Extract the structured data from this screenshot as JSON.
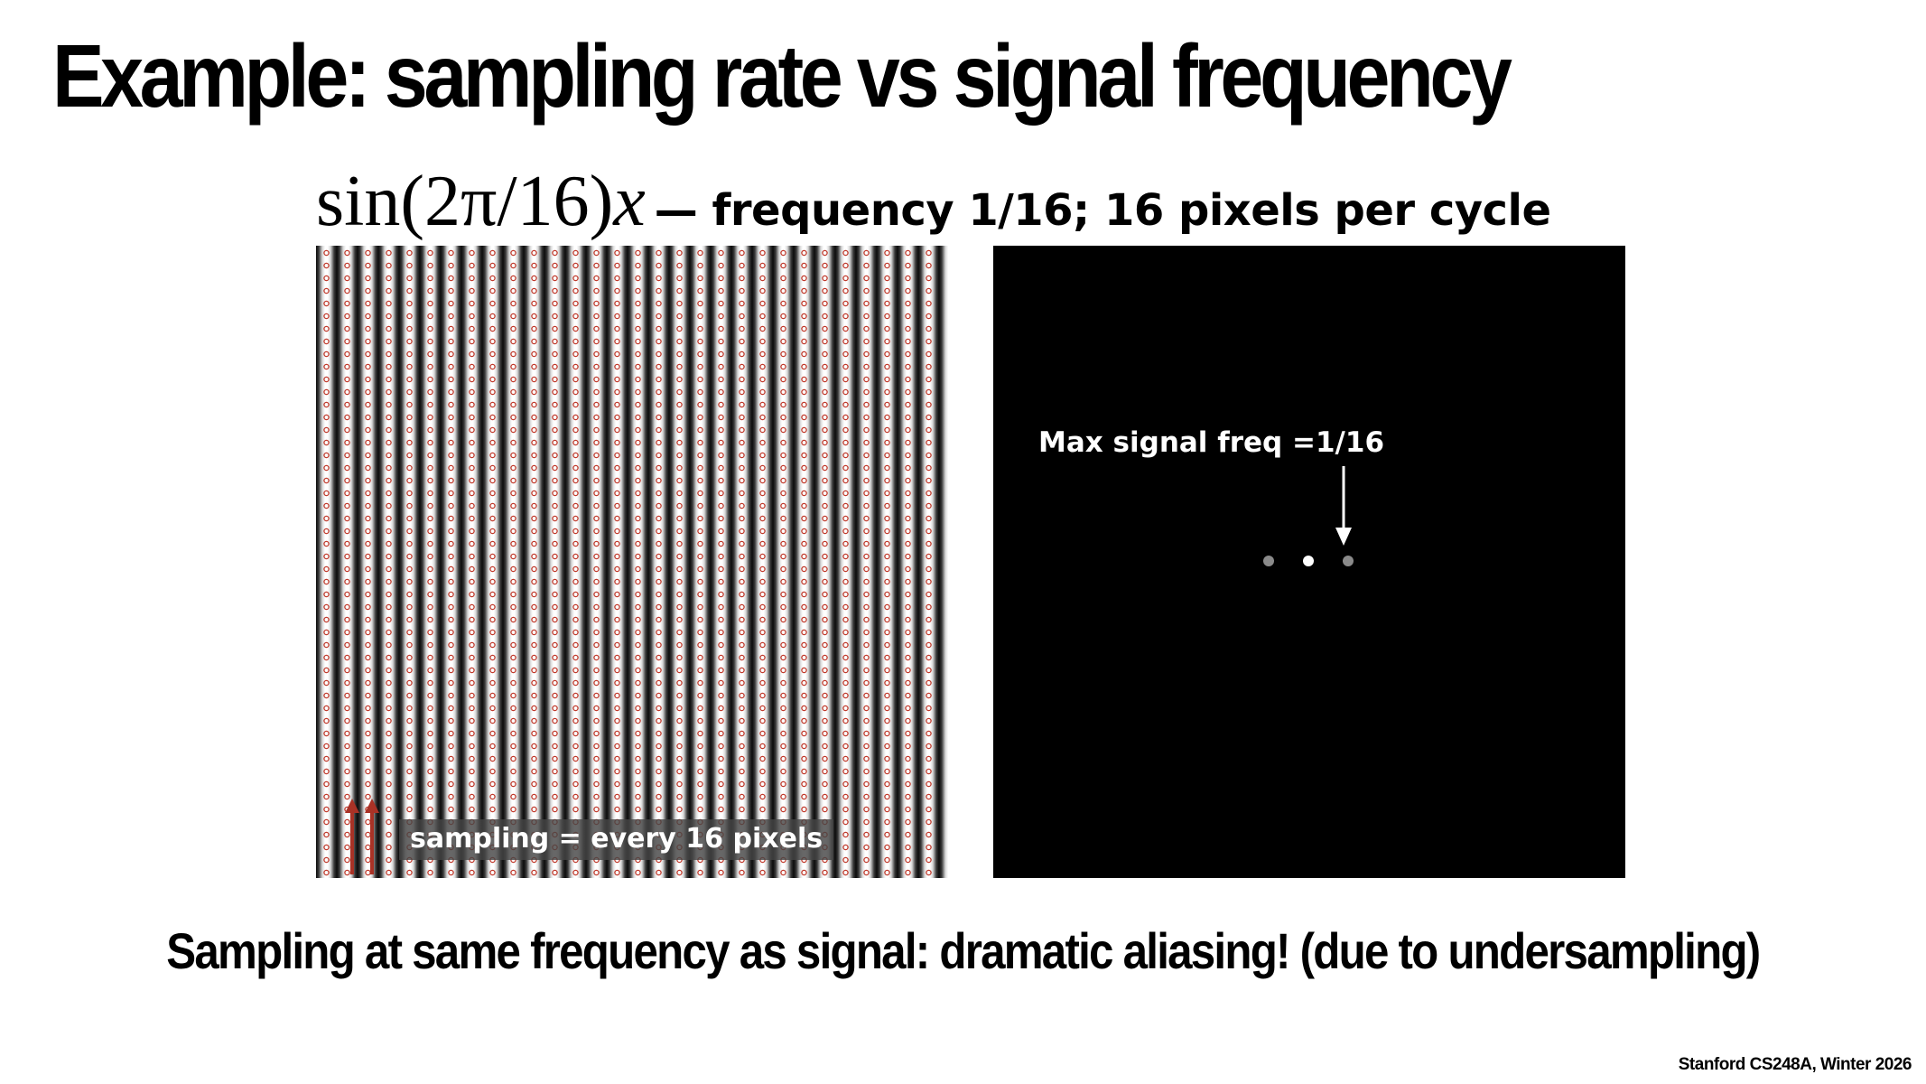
{
  "slide": {
    "title": "Example: sampling rate vs signal frequency",
    "conclusion": "Sampling at same frequency as signal: dramatic aliasing! (due to undersampling)",
    "footer": "Stanford CS248A, Winter 2026"
  },
  "formula": {
    "prefix": "sin(2π/16)",
    "variable": "x",
    "description": "— frequency 1/16; 16 pixels per cycle"
  },
  "signal_panel": {
    "sampling_caption": "sampling = every 16 pixels",
    "sample_color": "#c0392b",
    "arrow_color": "#a93226"
  },
  "spectrum_panel": {
    "max_freq_label": "Max signal freq =1/16"
  }
}
